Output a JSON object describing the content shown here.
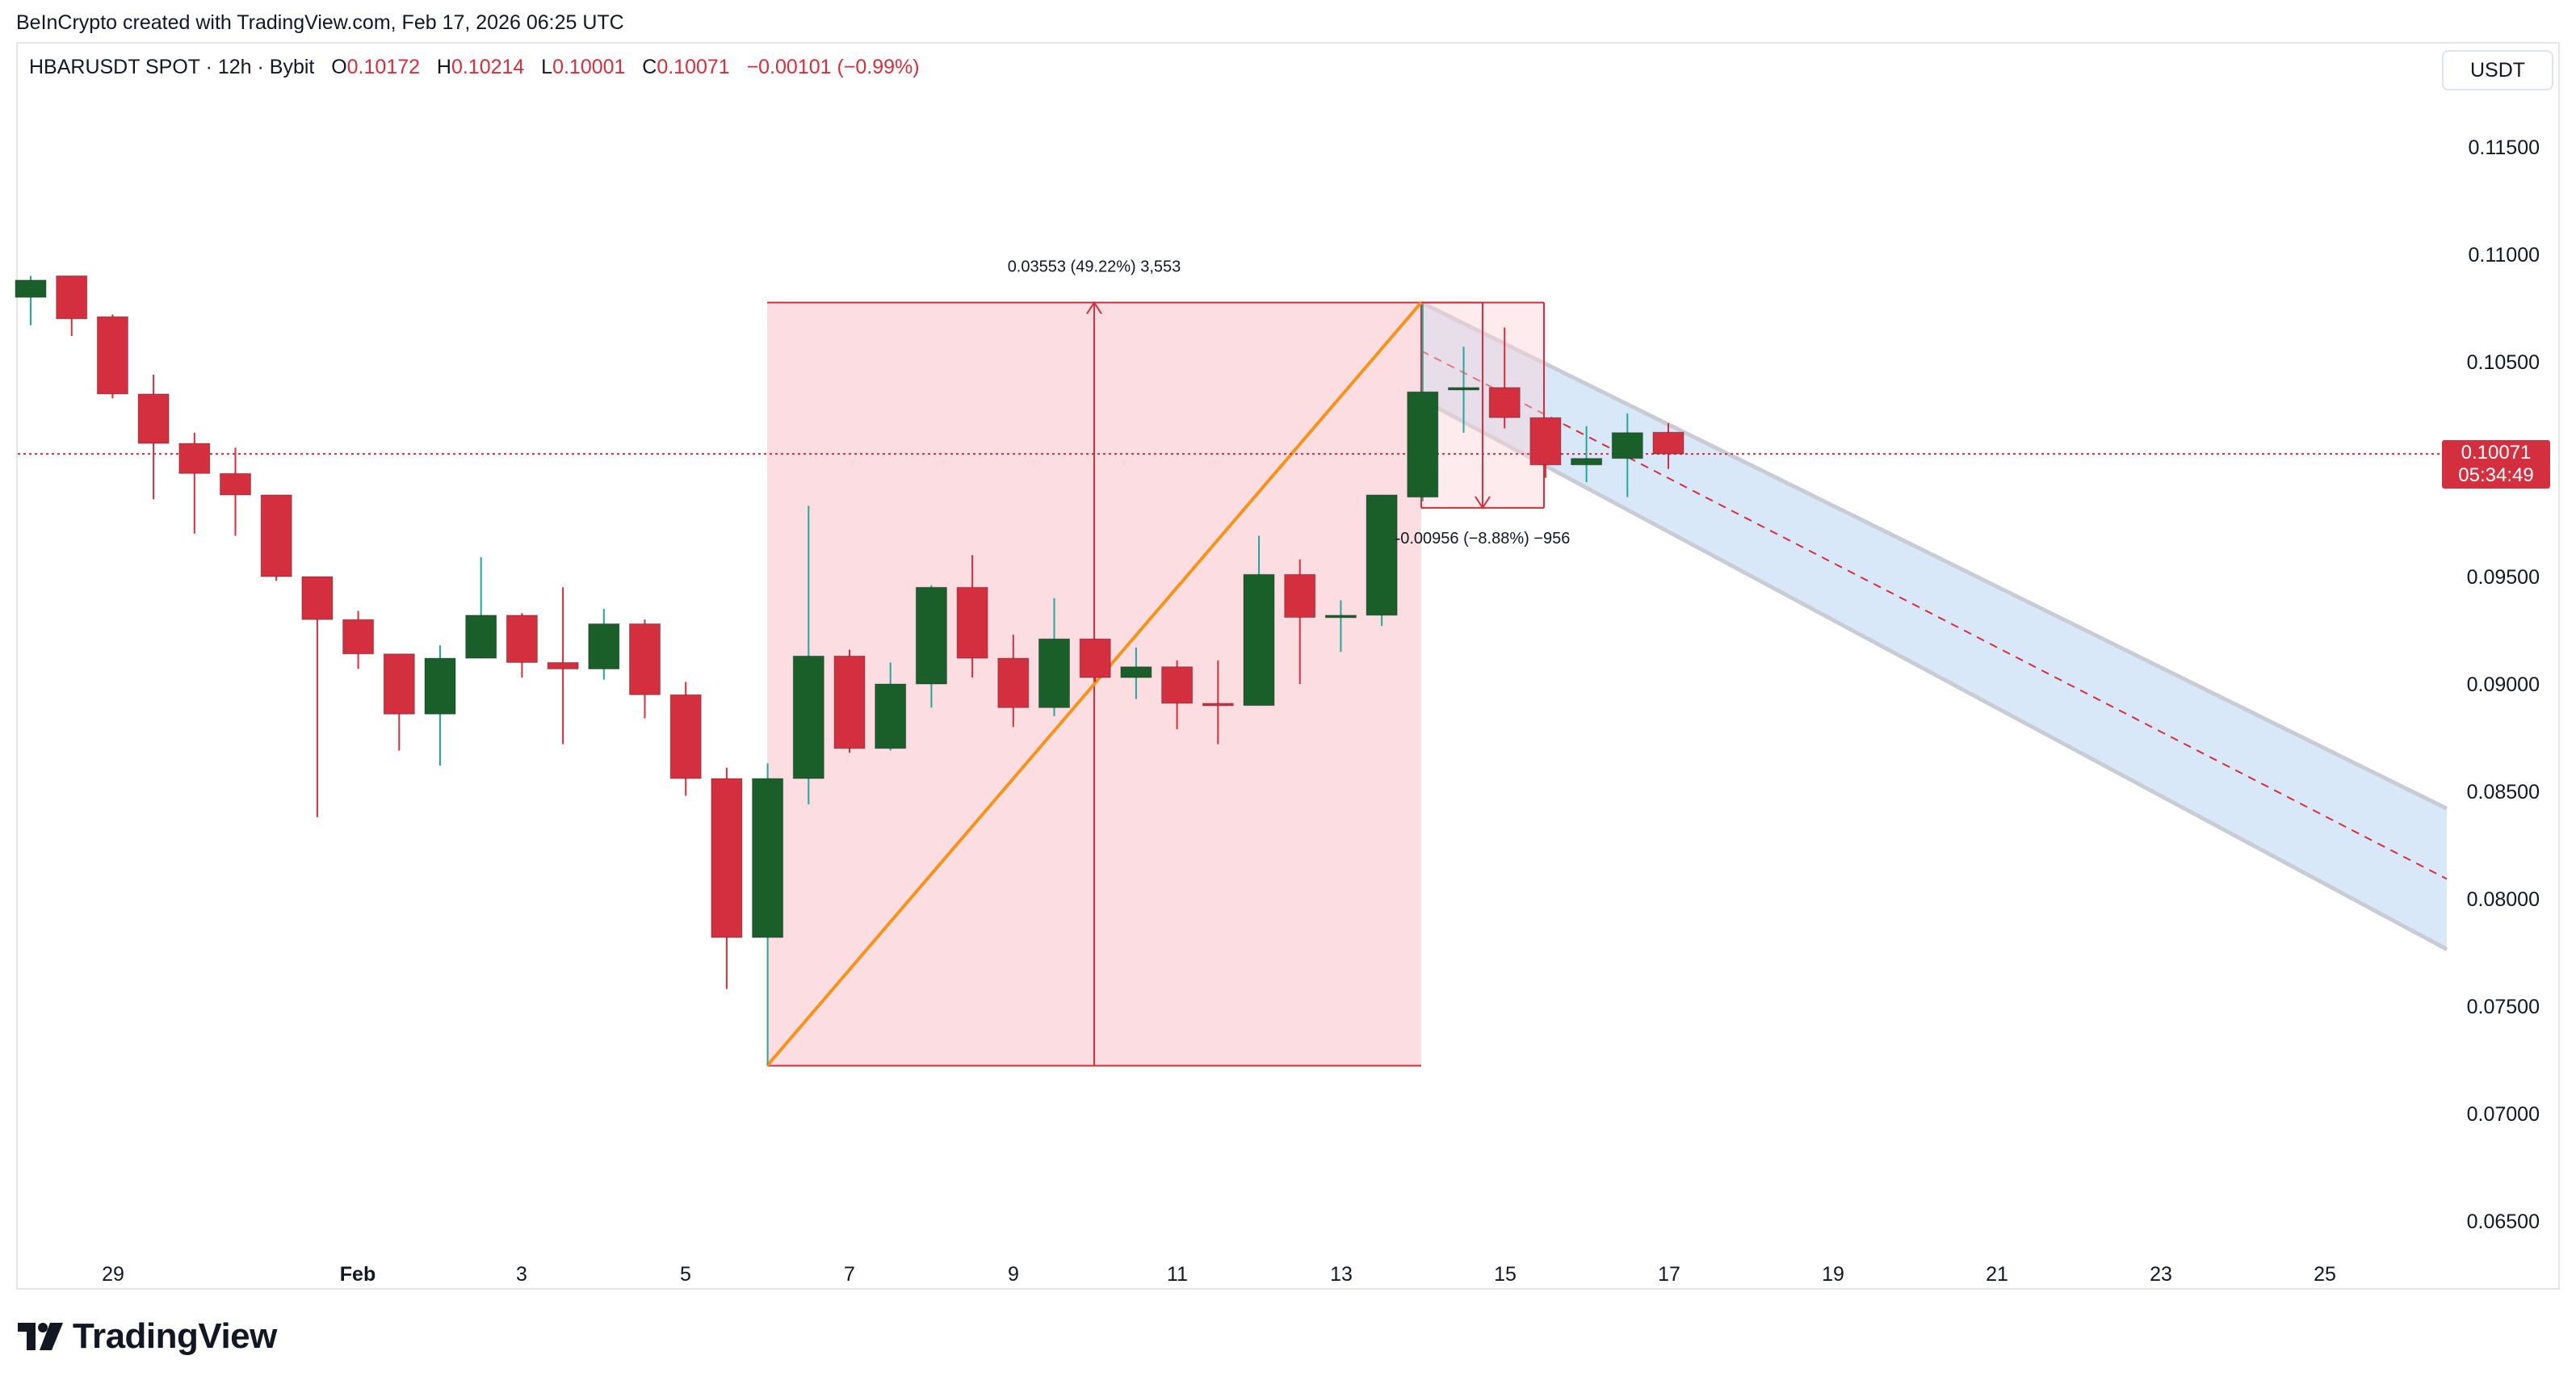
{
  "attribution": "BeInCrypto created with TradingView.com, Feb 17, 2026 06:25 UTC",
  "legend": {
    "symbol": "HBARUSDT SPOT · 12h · Bybit",
    "o_label": "O",
    "o": "0.10172",
    "h_label": "H",
    "h": "0.10214",
    "l_label": "L",
    "l": "0.10001",
    "c_label": "C",
    "c": "0.10071",
    "change": "−0.00101 (−0.99%)"
  },
  "currency_button": "USDT",
  "last_price": {
    "price": "0.10071",
    "countdown": "05:34:49"
  },
  "measure_up_label": "0.03553 (49.22%) 3,553",
  "measure_down_label": "-0.00956 (−8.88%) −956",
  "logo_text": "TradingView",
  "colors": {
    "up": "#1a5e2a",
    "down": "#d32f3f",
    "wick_up": "#26a69a",
    "wick_down": "#d32f3f",
    "orange": "#f7931a",
    "channel": "#cfe2f8"
  },
  "chart_data": {
    "type": "candlestick",
    "interval": "12h",
    "y_ticks": [
      "0.11500",
      "0.11000",
      "0.10500",
      "0.10000",
      "0.09500",
      "0.09000",
      "0.08500",
      "0.08000",
      "0.07500",
      "0.07000",
      "0.06500"
    ],
    "x_ticks": [
      "29",
      "Feb",
      "3",
      "5",
      "7",
      "9",
      "11",
      "13",
      "15",
      "17",
      "19",
      "21",
      "23",
      "25"
    ],
    "ylim": [
      0.0635,
      0.1195
    ],
    "candles": [
      {
        "o": 0.108,
        "h": 0.109,
        "l": 0.1067,
        "c": 0.1088
      },
      {
        "o": 0.109,
        "h": 0.109,
        "l": 0.1062,
        "c": 0.107
      },
      {
        "o": 0.1071,
        "h": 0.1072,
        "l": 0.1033,
        "c": 0.1035
      },
      {
        "o": 0.1035,
        "h": 0.1044,
        "l": 0.0986,
        "c": 0.1012
      },
      {
        "o": 0.1012,
        "h": 0.1017,
        "l": 0.097,
        "c": 0.0998
      },
      {
        "o": 0.0998,
        "h": 0.101,
        "l": 0.0969,
        "c": 0.0988
      },
      {
        "o": 0.0988,
        "h": 0.0988,
        "l": 0.0948,
        "c": 0.095
      },
      {
        "o": 0.095,
        "h": 0.095,
        "l": 0.0838,
        "c": 0.093
      },
      {
        "o": 0.093,
        "h": 0.0934,
        "l": 0.0907,
        "c": 0.0914
      },
      {
        "o": 0.0914,
        "h": 0.0914,
        "l": 0.0869,
        "c": 0.0886
      },
      {
        "o": 0.0886,
        "h": 0.0918,
        "l": 0.0862,
        "c": 0.0912
      },
      {
        "o": 0.0912,
        "h": 0.0959,
        "l": 0.0912,
        "c": 0.0932
      },
      {
        "o": 0.0932,
        "h": 0.0933,
        "l": 0.0903,
        "c": 0.091
      },
      {
        "o": 0.091,
        "h": 0.0945,
        "l": 0.0872,
        "c": 0.0907
      },
      {
        "o": 0.0907,
        "h": 0.0935,
        "l": 0.0902,
        "c": 0.0928
      },
      {
        "o": 0.0928,
        "h": 0.093,
        "l": 0.0884,
        "c": 0.0895
      },
      {
        "o": 0.0895,
        "h": 0.0901,
        "l": 0.0848,
        "c": 0.0856
      },
      {
        "o": 0.0856,
        "h": 0.0861,
        "l": 0.0758,
        "c": 0.0782
      },
      {
        "o": 0.0782,
        "h": 0.0863,
        "l": 0.0723,
        "c": 0.0856
      },
      {
        "o": 0.0856,
        "h": 0.0983,
        "l": 0.0844,
        "c": 0.0913
      },
      {
        "o": 0.0913,
        "h": 0.0916,
        "l": 0.0868,
        "c": 0.087
      },
      {
        "o": 0.087,
        "h": 0.091,
        "l": 0.0869,
        "c": 0.09
      },
      {
        "o": 0.09,
        "h": 0.0946,
        "l": 0.0889,
        "c": 0.0945
      },
      {
        "o": 0.0945,
        "h": 0.096,
        "l": 0.0903,
        "c": 0.0912
      },
      {
        "o": 0.0912,
        "h": 0.0923,
        "l": 0.088,
        "c": 0.0889
      },
      {
        "o": 0.0889,
        "h": 0.094,
        "l": 0.0885,
        "c": 0.0921
      },
      {
        "o": 0.0921,
        "h": 0.0921,
        "l": 0.0901,
        "c": 0.0903
      },
      {
        "o": 0.0903,
        "h": 0.0917,
        "l": 0.0893,
        "c": 0.0908
      },
      {
        "o": 0.0908,
        "h": 0.0911,
        "l": 0.0879,
        "c": 0.0891
      },
      {
        "o": 0.0891,
        "h": 0.0911,
        "l": 0.0872,
        "c": 0.089
      },
      {
        "o": 0.089,
        "h": 0.0969,
        "l": 0.089,
        "c": 0.0951
      },
      {
        "o": 0.0951,
        "h": 0.0958,
        "l": 0.09,
        "c": 0.0931
      },
      {
        "o": 0.0931,
        "h": 0.0939,
        "l": 0.0915,
        "c": 0.0932
      },
      {
        "o": 0.0932,
        "h": 0.0988,
        "l": 0.0927,
        "c": 0.0988
      },
      {
        "o": 0.0987,
        "h": 0.1077,
        "l": 0.0985,
        "c": 0.1036
      },
      {
        "o": 0.1037,
        "h": 0.1057,
        "l": 0.1017,
        "c": 0.1038
      },
      {
        "o": 0.1038,
        "h": 0.1066,
        "l": 0.1019,
        "c": 0.1024
      },
      {
        "o": 0.1024,
        "h": 0.1024,
        "l": 0.0996,
        "c": 0.1002
      },
      {
        "o": 0.1002,
        "h": 0.102,
        "l": 0.0994,
        "c": 0.1005
      },
      {
        "o": 0.1005,
        "h": 0.1026,
        "l": 0.0987,
        "c": 0.1017
      },
      {
        "o": 0.10172,
        "h": 0.10214,
        "l": 0.10001,
        "c": 0.10071
      }
    ]
  }
}
